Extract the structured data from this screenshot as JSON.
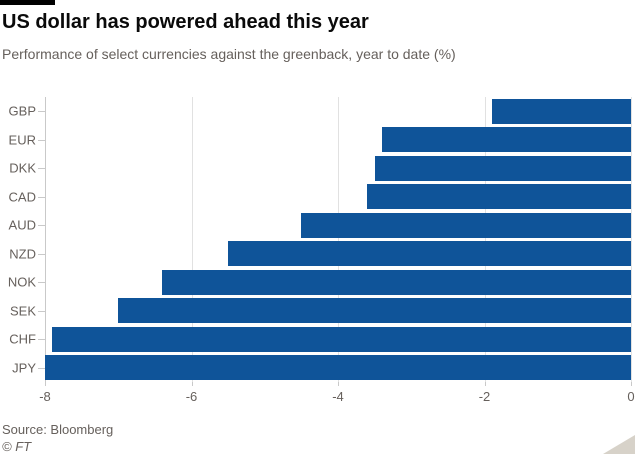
{
  "header": {
    "title": "US dollar has powered ahead this year",
    "subtitle": "Performance of select currencies against the greenback, year to date (%)"
  },
  "footer": {
    "source": "Source: Bloomberg",
    "copyright": "© FT"
  },
  "chart_data": {
    "type": "bar",
    "orientation": "horizontal",
    "title": "US dollar has powered ahead this year",
    "subtitle": "Performance of select currencies against the greenback, year to date (%)",
    "categories": [
      "GBP",
      "EUR",
      "DKK",
      "CAD",
      "AUD",
      "NZD",
      "NOK",
      "SEK",
      "CHF",
      "JPY"
    ],
    "values": [
      -1.9,
      -3.4,
      -3.5,
      -3.6,
      -4.5,
      -5.5,
      -6.4,
      -7.0,
      -7.9,
      -8.0
    ],
    "xlabel": "",
    "ylabel": "",
    "xlim": [
      -8,
      0
    ],
    "xticks": [
      -8,
      -6,
      -4,
      -2,
      0
    ],
    "xtick_labels": [
      "-8",
      "-6",
      "-4",
      "-2",
      "0"
    ],
    "grid": true,
    "legend": "none"
  },
  "colors": {
    "bar": "#0f5499",
    "grid": "#e1e1e1",
    "axis": "#c9c9c9",
    "title_text": "#0a0a0a",
    "secondary_text": "#66605c",
    "top_rule": "#000000",
    "resize_handle": "#d7d2c9"
  }
}
